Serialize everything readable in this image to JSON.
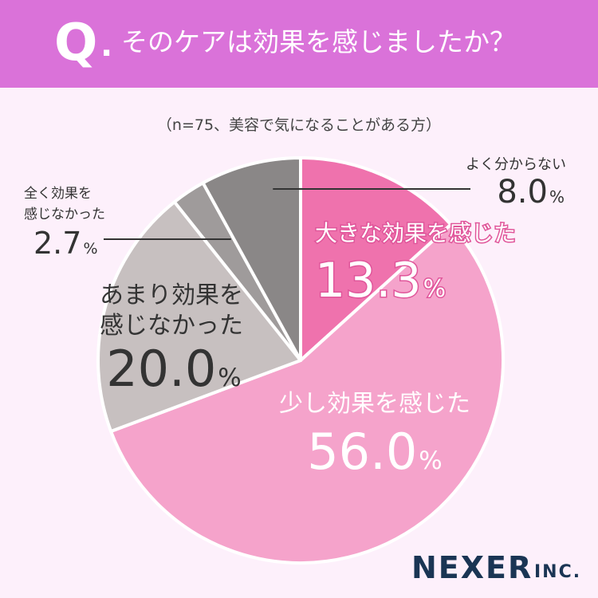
{
  "header": {
    "q_letter": "Q",
    "q_dot": ".",
    "question": "そのケアは効果を感じましたか？"
  },
  "sample_note": "（n=75、美容で気になることがある方）",
  "brand": {
    "name": "NEXER",
    "suffix": "INC."
  },
  "colors": {
    "header_bg": "#da72d9",
    "page_bg": "#fdf0fb",
    "strong": "#ef72ad",
    "some": "#f5a3cb",
    "not_much": "#c7c0c0",
    "none": "#9f9b9b",
    "unknown": "#8a8787"
  },
  "chart_data": {
    "type": "pie",
    "n": 75,
    "slices": [
      {
        "label": "大きな効果を感じた",
        "value": 13.3,
        "value_text": "13.3",
        "unit": "%",
        "color": "#ef72ad"
      },
      {
        "label": "少し効果を感じた",
        "value": 56.0,
        "value_text": "56.0",
        "unit": "%",
        "color": "#f5a3cb"
      },
      {
        "label_lines": [
          "あまり効果を",
          "感じなかった"
        ],
        "value": 20.0,
        "value_text": "20.0",
        "unit": "%",
        "color": "#c7c0c0"
      },
      {
        "label_lines": [
          "全く効果を",
          "感じなかった"
        ],
        "value": 2.7,
        "value_text": "2.7",
        "unit": "%",
        "color": "#9f9b9b"
      },
      {
        "label": "よく分からない",
        "value": 8.0,
        "value_text": "8.0",
        "unit": "%",
        "color": "#8a8787"
      }
    ]
  }
}
